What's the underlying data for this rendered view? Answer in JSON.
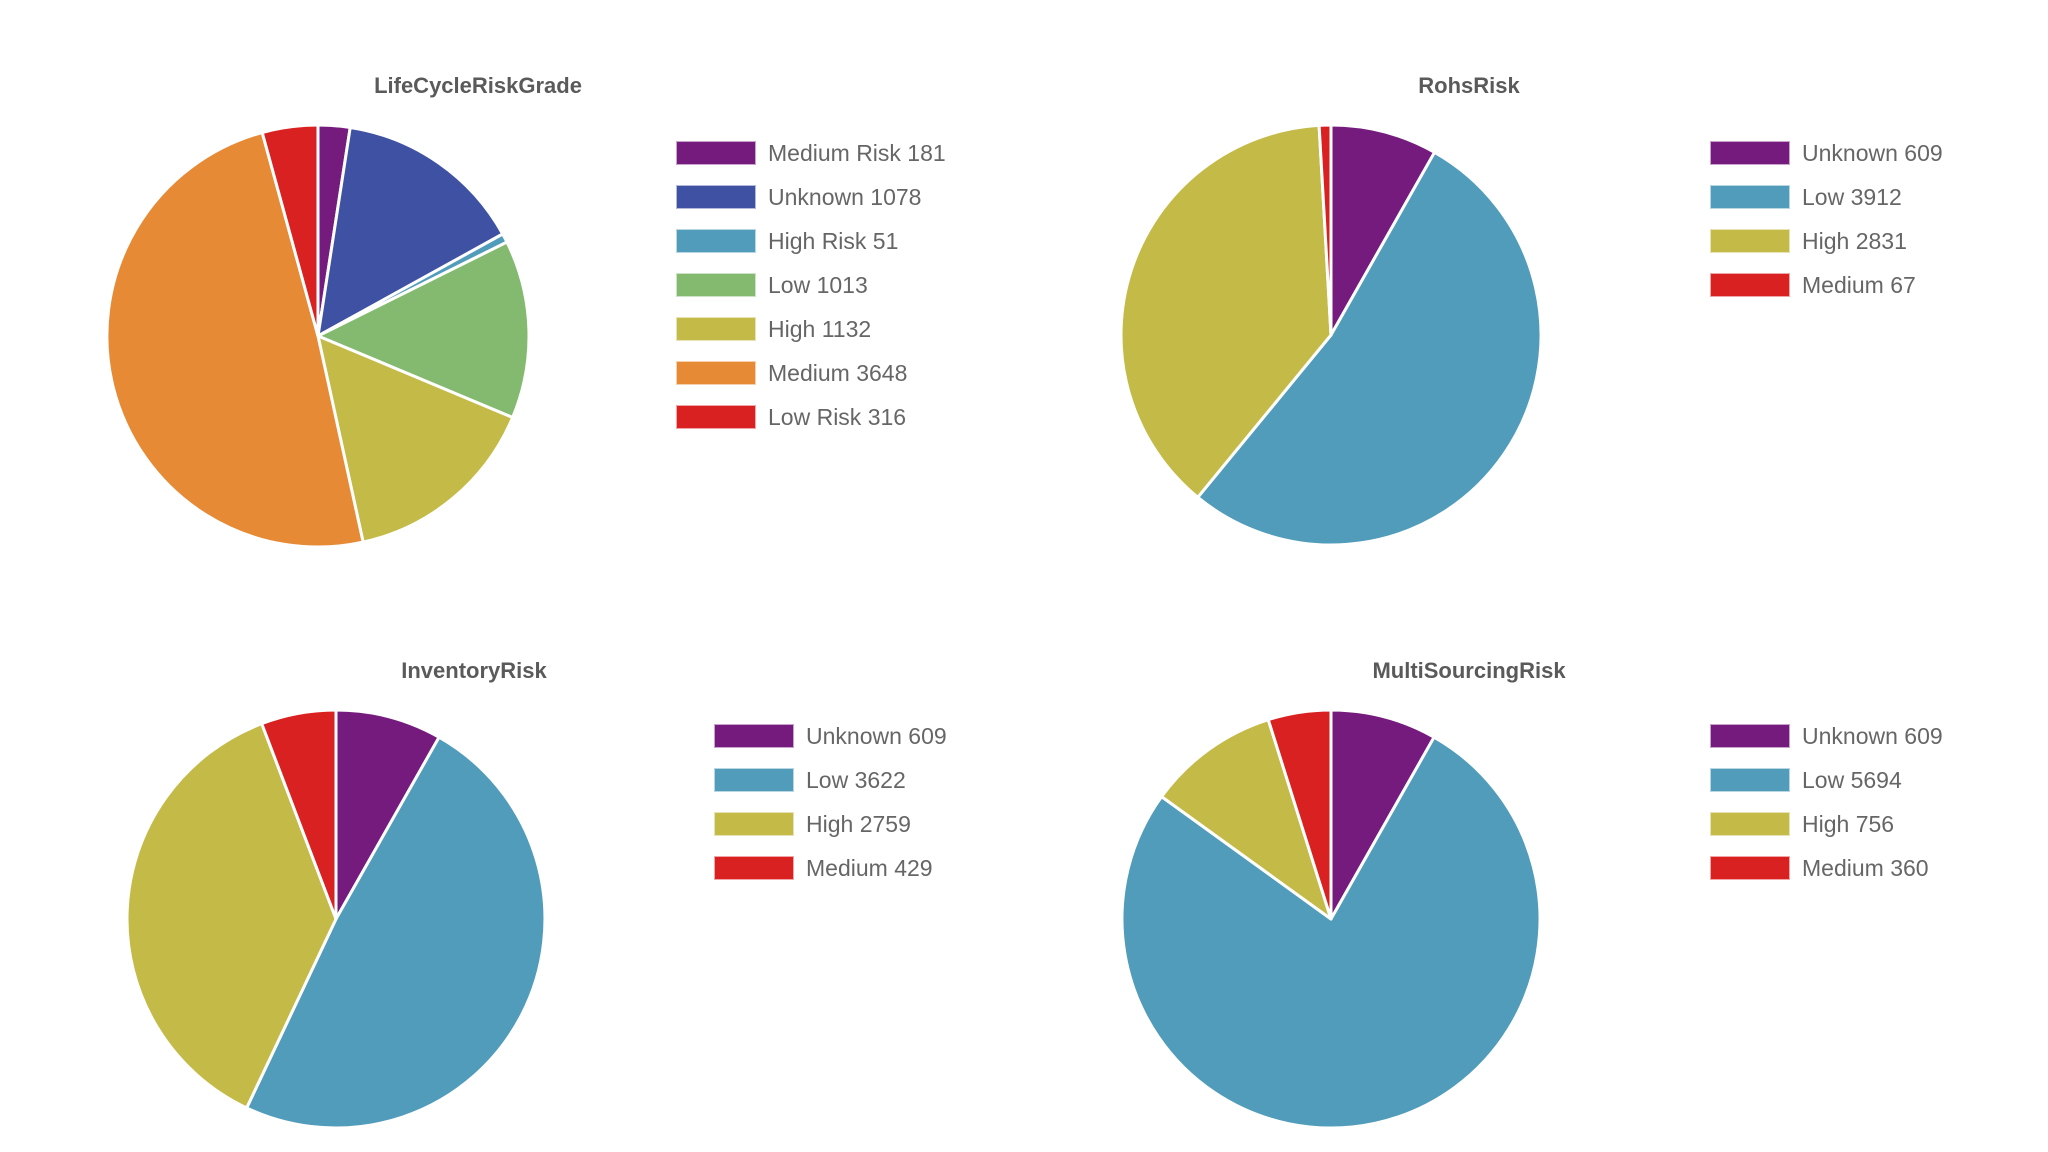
{
  "colors": {
    "purple": "#761b7e",
    "indigo": "#3f51a3",
    "teal": "#519cba",
    "green": "#84ba6f",
    "olive": "#c4ba47",
    "orange": "#e68a36",
    "red": "#d92121"
  },
  "chart_data": [
    {
      "type": "pie",
      "title": "LifeCycleRiskGrade",
      "categories": [
        "Medium Risk",
        "Unknown",
        "High Risk",
        "Low",
        "High",
        "Medium",
        "Low Risk"
      ],
      "values": [
        181,
        1078,
        51,
        1013,
        1132,
        3648,
        316
      ],
      "colors": [
        "#761b7e",
        "#3f51a3",
        "#519cba",
        "#84ba6f",
        "#c4ba47",
        "#e68a36",
        "#d92121"
      ],
      "legend": [
        {
          "label": "Medium Risk 181",
          "color": "#761b7e"
        },
        {
          "label": "Unknown 1078",
          "color": "#3f51a3"
        },
        {
          "label": "High Risk 51",
          "color": "#519cba"
        },
        {
          "label": "Low 1013",
          "color": "#84ba6f"
        },
        {
          "label": "High 1132",
          "color": "#c4ba47"
        },
        {
          "label": "Medium 3648",
          "color": "#e68a36"
        },
        {
          "label": "Low Risk 316",
          "color": "#d92121"
        }
      ],
      "legend_position": "right",
      "start_angle": "12 o'clock, clockwise"
    },
    {
      "type": "pie",
      "title": "RohsRisk",
      "categories": [
        "Unknown",
        "Low",
        "High",
        "Medium"
      ],
      "values": [
        609,
        3912,
        2831,
        67
      ],
      "colors": [
        "#761b7e",
        "#519cba",
        "#c4ba47",
        "#d92121"
      ],
      "legend": [
        {
          "label": "Unknown 609",
          "color": "#761b7e"
        },
        {
          "label": "Low 3912",
          "color": "#519cba"
        },
        {
          "label": "High 2831",
          "color": "#c4ba47"
        },
        {
          "label": "Medium 67",
          "color": "#d92121"
        }
      ],
      "legend_position": "right",
      "start_angle": "12 o'clock, clockwise"
    },
    {
      "type": "pie",
      "title": "InventoryRisk",
      "categories": [
        "Unknown",
        "Low",
        "High",
        "Medium"
      ],
      "values": [
        609,
        3622,
        2759,
        429
      ],
      "colors": [
        "#761b7e",
        "#519cba",
        "#c4ba47",
        "#d92121"
      ],
      "legend": [
        {
          "label": "Unknown 609",
          "color": "#761b7e"
        },
        {
          "label": "Low 3622",
          "color": "#519cba"
        },
        {
          "label": "High 2759",
          "color": "#c4ba47"
        },
        {
          "label": "Medium 429",
          "color": "#d92121"
        }
      ],
      "legend_position": "right",
      "start_angle": "12 o'clock, clockwise"
    },
    {
      "type": "pie",
      "title": "MultiSourcingRisk",
      "categories": [
        "Unknown",
        "Low",
        "High",
        "Medium"
      ],
      "values": [
        609,
        5694,
        756,
        360
      ],
      "colors": [
        "#761b7e",
        "#519cba",
        "#c4ba47",
        "#d92121"
      ],
      "legend": [
        {
          "label": "Unknown 609",
          "color": "#761b7e"
        },
        {
          "label": "Low 5694",
          "color": "#519cba"
        },
        {
          "label": "High 756",
          "color": "#c4ba47"
        },
        {
          "label": "Medium 360",
          "color": "#d92121"
        }
      ],
      "legend_position": "right",
      "start_angle": "12 o'clock, clockwise"
    }
  ]
}
